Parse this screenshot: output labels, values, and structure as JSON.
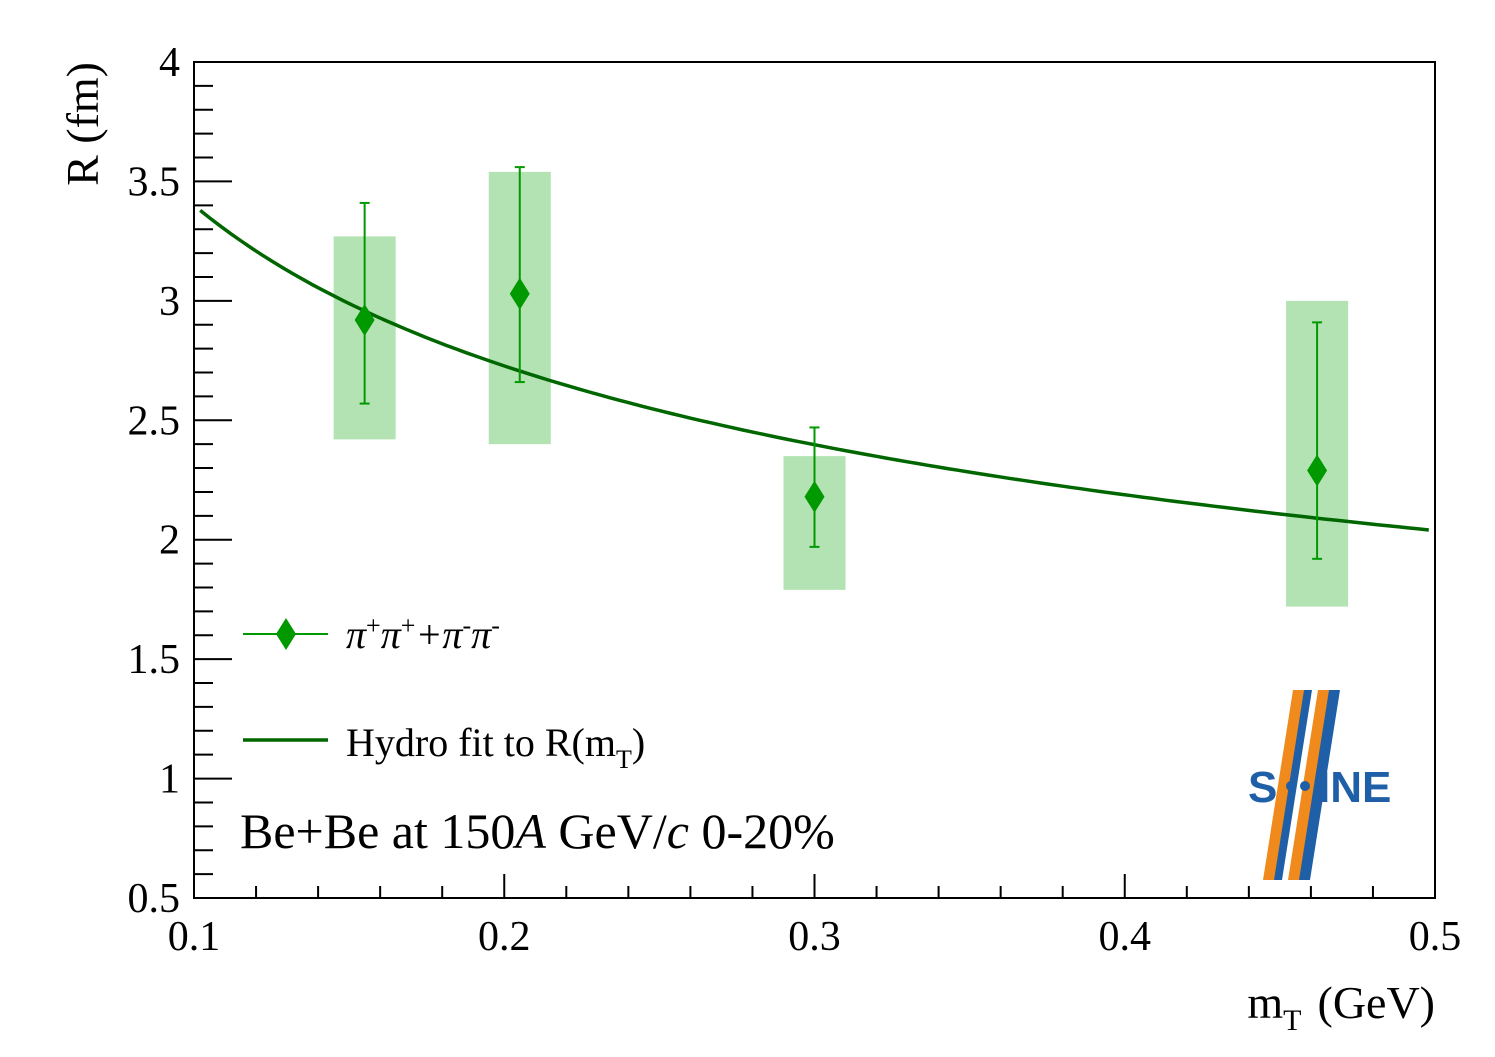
{
  "colors": {
    "data": "#009900",
    "fit": "#006600",
    "syst_box": "#b3e3b3",
    "logo_blue": "#1f5fa8",
    "logo_orange": "#f08a1c"
  },
  "chart_data": {
    "type": "scatter",
    "title": "",
    "xlabel": "m",
    "xlabel_sub": "T",
    "xlabel_unit": "(GeV)",
    "ylabel": "R (fm)",
    "xlim": [
      0.1,
      0.5
    ],
    "ylim": [
      0.5,
      4.0
    ],
    "x_ticks": [
      0.1,
      0.2,
      0.3,
      0.4,
      0.5
    ],
    "x_tick_labels": [
      "0.1",
      "0.2",
      "0.3",
      "0.4",
      "0.5"
    ],
    "y_ticks": [
      0.5,
      1.0,
      1.5,
      2.0,
      2.5,
      3.0,
      3.5,
      4.0
    ],
    "y_tick_labels": [
      "0.5",
      "1",
      "1.5",
      "2",
      "2.5",
      "3",
      "3.5",
      "4"
    ],
    "series": [
      {
        "name": "π⁺π⁺+π⁻π⁻",
        "marker": "diamond",
        "points": [
          {
            "x": 0.155,
            "y": 2.92,
            "stat_low": 2.57,
            "stat_high": 3.41,
            "sys_low": 2.42,
            "sys_high": 3.27,
            "sys_xlow": 0.145,
            "sys_xhigh": 0.165
          },
          {
            "x": 0.205,
            "y": 3.03,
            "stat_low": 2.66,
            "stat_high": 3.56,
            "sys_low": 2.4,
            "sys_high": 3.54,
            "sys_xlow": 0.195,
            "sys_xhigh": 0.215
          },
          {
            "x": 0.3,
            "y": 2.18,
            "stat_low": 1.97,
            "stat_high": 2.47,
            "sys_low": 1.79,
            "sys_high": 2.35,
            "sys_xlow": 0.29,
            "sys_xhigh": 0.31
          },
          {
            "x": 0.462,
            "y": 2.29,
            "stat_low": 1.92,
            "stat_high": 2.91,
            "sys_low": 1.72,
            "sys_high": 3.0,
            "sys_xlow": 0.452,
            "sys_xhigh": 0.472
          }
        ]
      },
      {
        "name": "Hydro fit to R(m_T)",
        "style": "line",
        "x": [
          0.102,
          0.12,
          0.15,
          0.2,
          0.25,
          0.3,
          0.35,
          0.4,
          0.45,
          0.498
        ],
        "y": [
          3.34,
          3.18,
          3.0,
          2.76,
          2.58,
          2.42,
          2.29,
          2.19,
          2.09,
          2.01
        ]
      }
    ],
    "legend": {
      "position": "bottom-left",
      "entries": [
        {
          "label_parts": [
            "π",
            "+",
            "π",
            "+",
            "+π",
            "-",
            "π",
            "-"
          ],
          "kind": "marker"
        },
        {
          "label": "Hydro fit to R(m",
          "label_sub": "T",
          "label_end": ")",
          "kind": "line"
        }
      ]
    },
    "annotation": {
      "prefix": "Be+Be at 150",
      "italic_a": "A",
      "mid": " GeV/",
      "italic_c": "c",
      "suffix": " 0-20%"
    }
  },
  "logo": {
    "left_text": "S",
    "right_text": "INE"
  }
}
